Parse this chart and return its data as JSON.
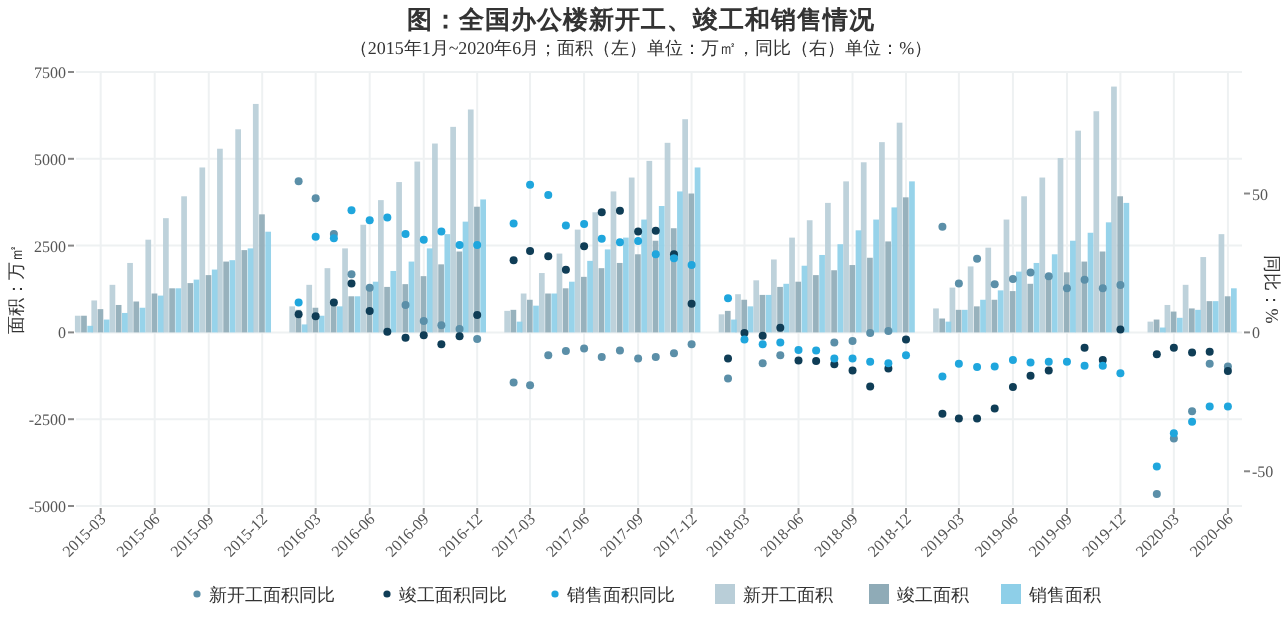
{
  "chart_data": {
    "type": "bar",
    "title": "图：全国办公楼新开工、竣工和销售情况",
    "subtitle": "（2015年1月~2020年6月；面积（左）单位：万㎡，同比（右）单位：%）",
    "ylabel": "面积：万㎡",
    "y2label": "同比：%",
    "x": [
      "2015-02",
      "2015-03",
      "2015-04",
      "2015-05",
      "2015-06",
      "2015-07",
      "2015-08",
      "2015-09",
      "2015-10",
      "2015-11",
      "2015-12",
      "2016-02",
      "2016-03",
      "2016-04",
      "2016-05",
      "2016-06",
      "2016-07",
      "2016-08",
      "2016-09",
      "2016-10",
      "2016-11",
      "2016-12",
      "2017-02",
      "2017-03",
      "2017-04",
      "2017-05",
      "2017-06",
      "2017-07",
      "2017-08",
      "2017-09",
      "2017-10",
      "2017-11",
      "2017-12",
      "2018-02",
      "2018-03",
      "2018-04",
      "2018-05",
      "2018-06",
      "2018-07",
      "2018-08",
      "2018-09",
      "2018-10",
      "2018-11",
      "2018-12",
      "2019-02",
      "2019-03",
      "2019-04",
      "2019-05",
      "2019-06",
      "2019-07",
      "2019-08",
      "2019-09",
      "2019-10",
      "2019-11",
      "2019-12",
      "2020-02",
      "2020-03",
      "2020-04",
      "2020-05",
      "2020-06"
    ],
    "xlim": [
      "2015-01-18",
      "2020-06-25"
    ],
    "xticks": [
      "2015-03",
      "2015-06",
      "2015-09",
      "2015-12",
      "2016-03",
      "2016-06",
      "2016-09",
      "2016-12",
      "2017-03",
      "2017-06",
      "2017-09",
      "2017-12",
      "2018-03",
      "2018-06",
      "2018-09",
      "2018-12",
      "2019-03",
      "2019-06",
      "2019-09",
      "2019-12",
      "2020-03",
      "2020-06"
    ],
    "ylim": [
      -5000,
      7500
    ],
    "yticks": [
      -5000,
      -2500,
      0,
      2500,
      5000,
      7500
    ],
    "y2lim": [
      -62.5,
      93.75
    ],
    "y2ticks": [
      -50,
      0,
      50
    ],
    "grid": true,
    "legend": "bottom",
    "marker": "circle",
    "series": [
      {
        "name": "新开工面积同比",
        "type": "scatter",
        "axis": "y2",
        "color": "#5b8fa8",
        "values": [
          null,
          null,
          null,
          null,
          null,
          null,
          null,
          null,
          null,
          null,
          null,
          54.4,
          48.3,
          35.4,
          20.9,
          16.1,
          null,
          9.9,
          4.1,
          2.6,
          1.2,
          -2.4,
          -18,
          -19,
          -8.2,
          -6.7,
          -5.8,
          -8.9,
          -6.5,
          -9.4,
          -8.9,
          -7.5,
          -4.3,
          -16.6,
          null,
          -11.1,
          -8.2,
          null,
          null,
          -3.6,
          -3.1,
          -0.2,
          0.5,
          null,
          38,
          17.6,
          26.5,
          17.3,
          19.2,
          21.6,
          20.2,
          15.9,
          19,
          15.9,
          17.1,
          -58.2,
          -38.2,
          -28.4,
          -11.3,
          -12.3
        ]
      },
      {
        "name": "竣工面积同比",
        "type": "scatter",
        "axis": "y2",
        "color": "#0f3d56",
        "values": [
          null,
          null,
          null,
          null,
          null,
          null,
          null,
          null,
          null,
          null,
          null,
          6.5,
          5.8,
          10.8,
          17.6,
          7.7,
          0.2,
          -1.9,
          -1,
          -4.3,
          -1.4,
          6.3,
          26,
          29.3,
          27.4,
          22.6,
          31,
          43.3,
          43.8,
          36.3,
          36.6,
          28.1,
          10.3,
          -9.4,
          -0.2,
          -1.2,
          1.7,
          -10.1,
          -10.3,
          -11.5,
          -13.7,
          -19.5,
          -13,
          -2.6,
          -29.3,
          -31,
          -31,
          -27.4,
          -19.7,
          -15.6,
          -13.7,
          null,
          -5.5,
          -9.9,
          1,
          -7.9,
          -5.5,
          -7.2,
          -7,
          -13.9
        ]
      },
      {
        "name": "销售面积同比",
        "type": "scatter",
        "axis": "y2",
        "color": "#1fa6dd",
        "values": [
          null,
          null,
          null,
          null,
          null,
          null,
          null,
          null,
          null,
          null,
          null,
          10.8,
          34.4,
          33.9,
          44,
          40.4,
          41.4,
          35.4,
          33.4,
          36.3,
          31.5,
          31.5,
          39.2,
          53.2,
          49.5,
          38.5,
          39,
          33.7,
          32.5,
          32.9,
          28.1,
          26.7,
          24.3,
          12.3,
          -2.6,
          -4.3,
          -3.6,
          -6.3,
          -6.5,
          -9.4,
          -9.4,
          -10.6,
          -11.1,
          -8.2,
          -15.9,
          -11.3,
          -12.5,
          -12.3,
          -9.9,
          -10.8,
          -10.6,
          -10.6,
          -12,
          -12,
          -14.7,
          -48.3,
          -36.3,
          -32.2,
          -26.7,
          -26.7
        ]
      },
      {
        "name": "新开工面积",
        "color": "#b9ced8",
        "values": [
          480,
          920,
          1370,
          2000,
          2670,
          3290,
          3920,
          4750,
          5290,
          5850,
          6580,
          750,
          1370,
          1850,
          2420,
          3100,
          3810,
          4330,
          4920,
          5440,
          5920,
          6420,
          620,
          1120,
          1710,
          2270,
          2960,
          3460,
          4060,
          4460,
          4940,
          5460,
          6140,
          520,
          1100,
          1500,
          2100,
          2730,
          3230,
          3730,
          4350,
          4900,
          5480,
          6040,
          690,
          1290,
          1900,
          2440,
          3250,
          3920,
          4460,
          5020,
          5810,
          6370,
          7080,
          310,
          790,
          1370,
          2170,
          2830
        ]
      },
      {
        "name": "竣工面积",
        "color": "#8fabb7",
        "values": [
          480,
          670,
          790,
          890,
          1120,
          1270,
          1420,
          1650,
          2040,
          2370,
          3400,
          650,
          710,
          850,
          1040,
          1330,
          1310,
          1390,
          1620,
          1960,
          2330,
          3620,
          650,
          940,
          1120,
          1270,
          1600,
          1850,
          2000,
          2250,
          2640,
          3000,
          4000,
          620,
          940,
          1080,
          1310,
          1460,
          1650,
          1790,
          1940,
          2150,
          2620,
          3890,
          400,
          650,
          750,
          940,
          1190,
          1400,
          1650,
          1730,
          2040,
          2330,
          3920,
          370,
          600,
          690,
          900,
          1040
        ]
      },
      {
        "name": "销售面积",
        "color": "#8ecfe8",
        "values": [
          190,
          370,
          560,
          710,
          1060,
          1270,
          1520,
          1810,
          2080,
          2420,
          2900,
          230,
          480,
          750,
          1040,
          1460,
          1770,
          2040,
          2420,
          2830,
          3190,
          3830,
          310,
          770,
          1120,
          1460,
          2060,
          2390,
          2730,
          3250,
          3640,
          4060,
          4750,
          370,
          750,
          1080,
          1400,
          1920,
          2230,
          2540,
          2940,
          3250,
          3600,
          4350,
          310,
          650,
          940,
          1210,
          1750,
          2000,
          2250,
          2640,
          2870,
          3170,
          3730,
          140,
          420,
          650,
          900,
          1270
        ]
      }
    ]
  }
}
